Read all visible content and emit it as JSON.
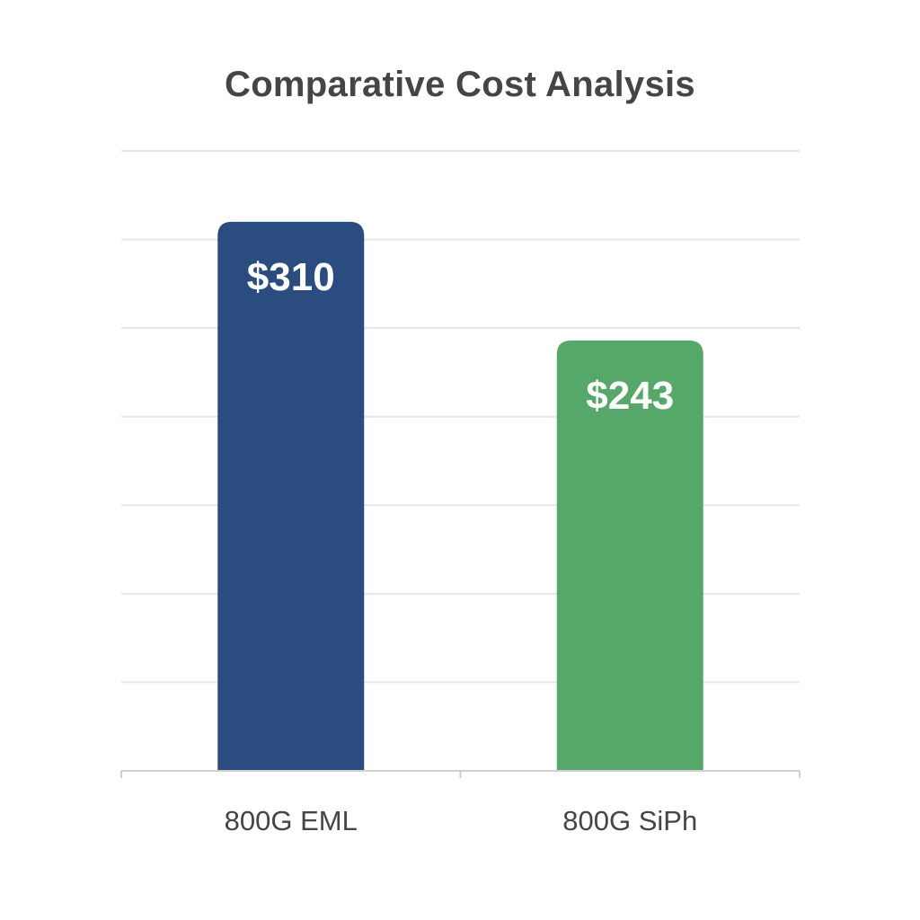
{
  "chart_data": {
    "type": "bar",
    "title": "Comparative Cost Analysis",
    "xlabel": "",
    "ylabel": "",
    "categories": [
      "800G EML",
      "800G SiPh"
    ],
    "values": [
      310,
      243
    ],
    "value_labels": [
      "$310",
      "$243"
    ],
    "colors": [
      "#2b4c7e",
      "#55a86a"
    ],
    "ylim": [
      0,
      350
    ],
    "grid": true,
    "legend": "none"
  }
}
